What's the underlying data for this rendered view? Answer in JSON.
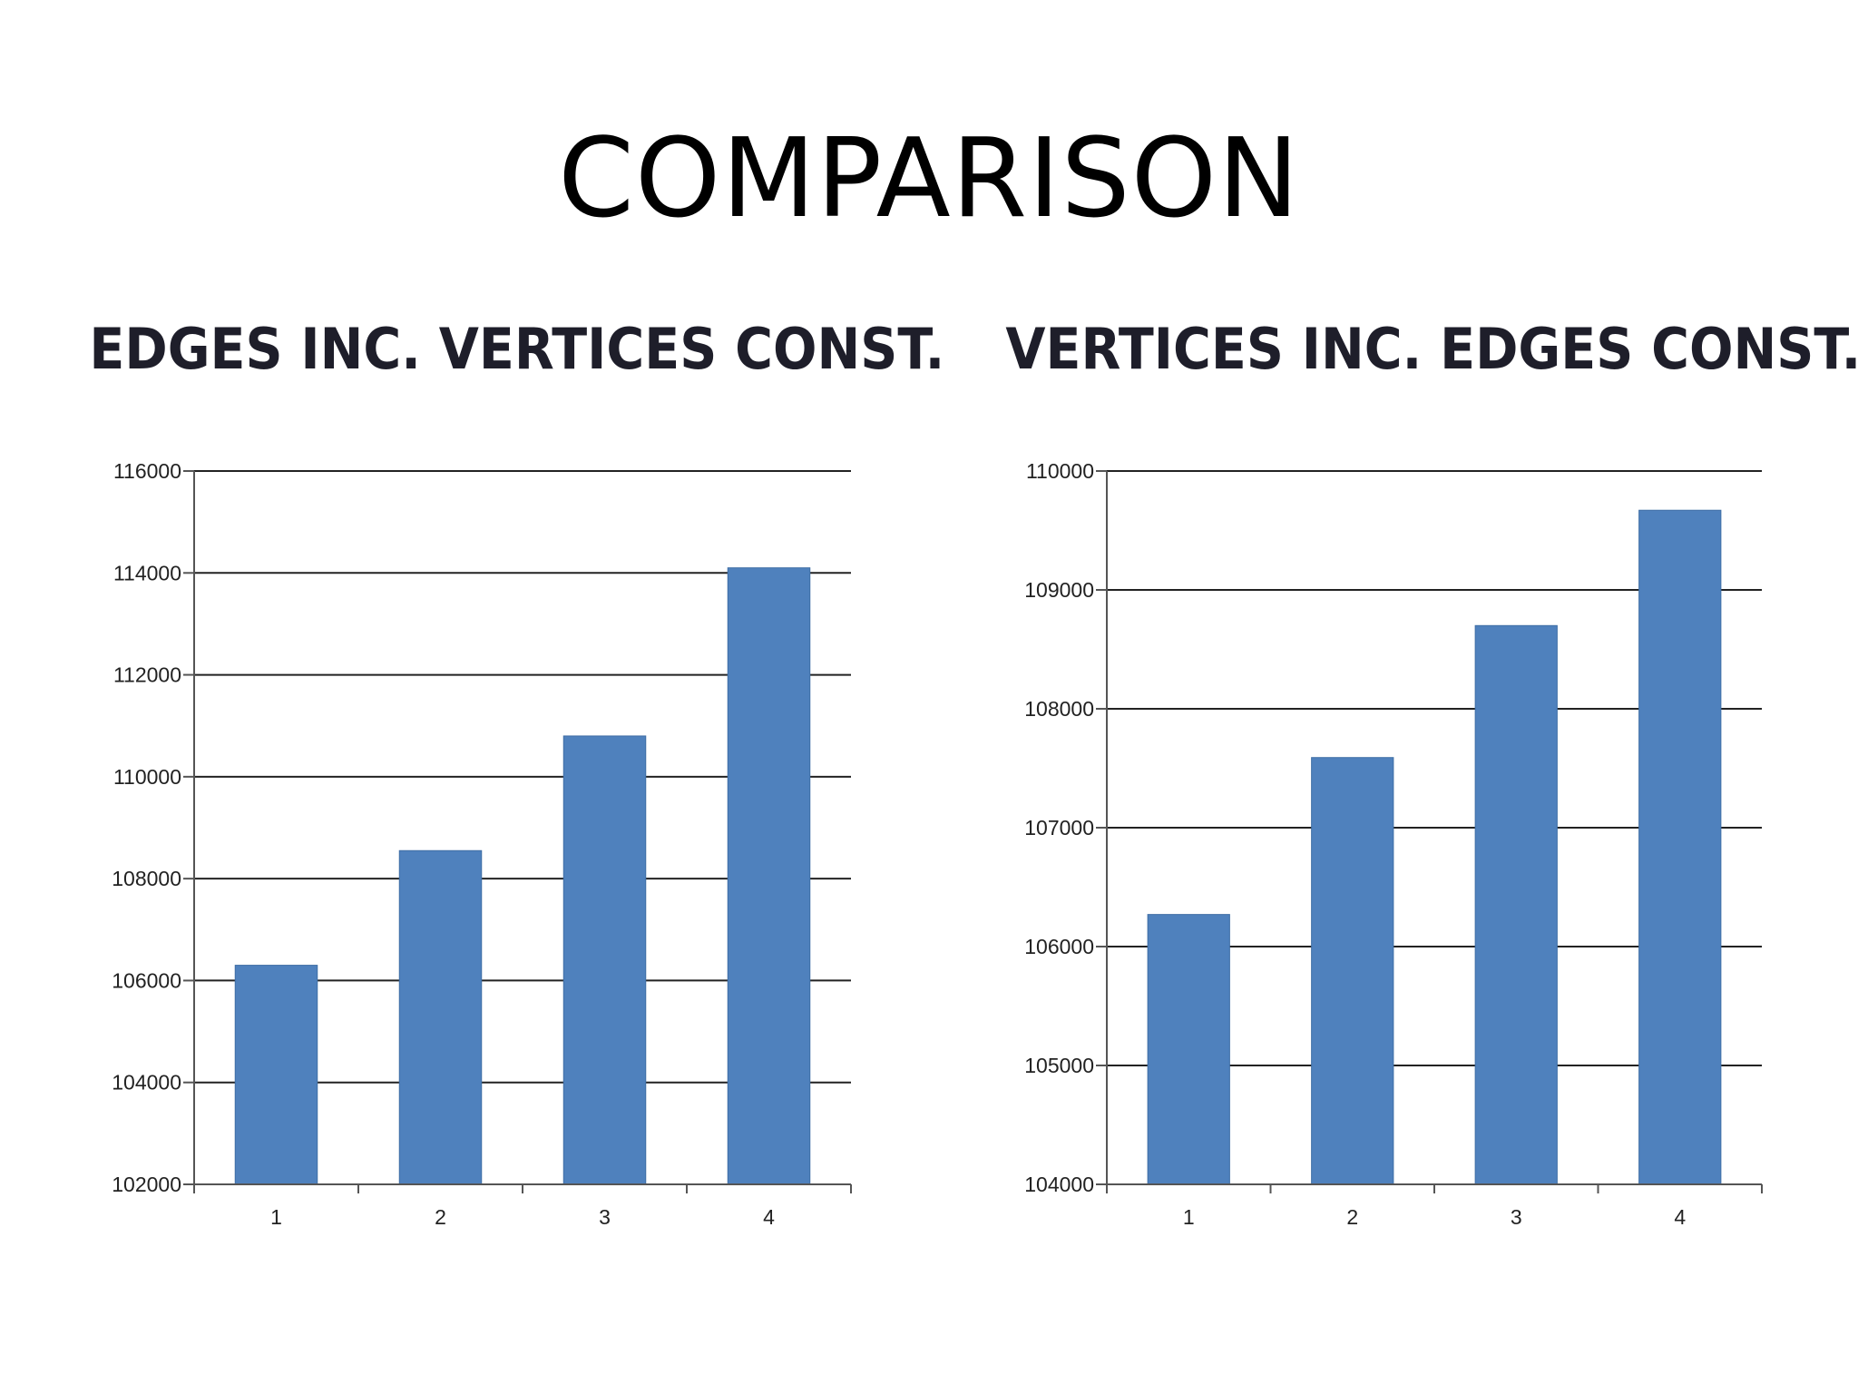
{
  "title": "COMPARISON",
  "colors": {
    "bar": "#4f81bd",
    "axis": "#555555",
    "grid": "#222222"
  },
  "chart_data": [
    {
      "type": "bar",
      "title": "EDGES INC. VERTICES CONST.",
      "categories": [
        "1",
        "2",
        "3",
        "4"
      ],
      "values": [
        106300,
        108550,
        110800,
        114100
      ],
      "ylim": [
        102000,
        116000
      ],
      "yticks": [
        102000,
        104000,
        106000,
        108000,
        110000,
        112000,
        114000,
        116000
      ],
      "ytick_labels": [
        "102000",
        "104000",
        "106000",
        "108000",
        "110000",
        "112000",
        "114000",
        "116000"
      ],
      "xlabel": "",
      "ylabel": "",
      "grid": true,
      "legend": "none"
    },
    {
      "type": "bar",
      "title": "VERTICES INC. EDGES CONST.",
      "categories": [
        "1",
        "2",
        "3",
        "4"
      ],
      "values": [
        106270,
        107590,
        108700,
        109670
      ],
      "ylim": [
        104000,
        110000
      ],
      "yticks": [
        104000,
        105000,
        106000,
        107000,
        108000,
        109000,
        110000
      ],
      "ytick_labels": [
        "104000",
        "105000",
        "106000",
        "107000",
        "108000",
        "109000",
        "110000"
      ],
      "xlabel": "",
      "ylabel": "",
      "grid": true,
      "legend": "none"
    }
  ]
}
